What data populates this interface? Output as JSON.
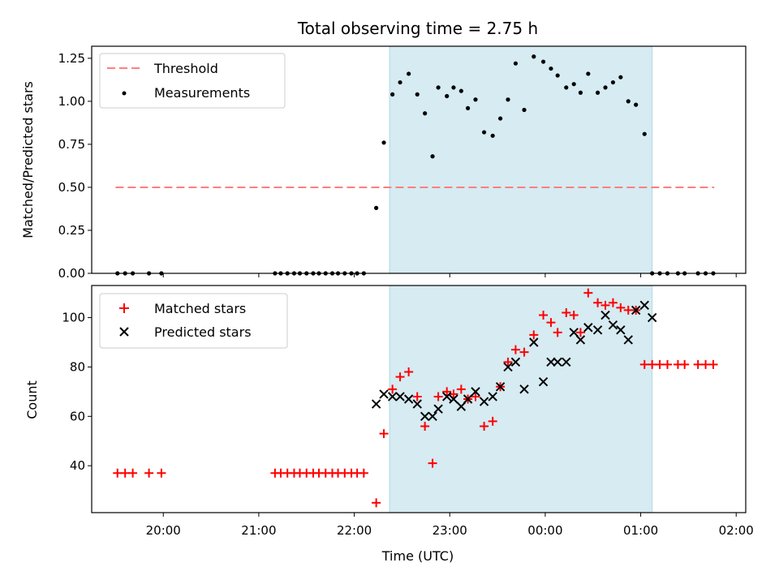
{
  "chart_data": [
    {
      "type": "scatter",
      "title": "Total observing time = 2.75 h",
      "xlabel": "",
      "ylabel": "Matched/Predicted stars",
      "x_unit": "hours (UTC, continuing past midnight)",
      "xlim": [
        19.25,
        26.1
      ],
      "ylim": [
        0,
        1.32
      ],
      "yticks": [
        0.0,
        0.25,
        0.5,
        0.75,
        1.0,
        1.25
      ],
      "ytick_labels": [
        "0.00",
        "0.25",
        "0.50",
        "0.75",
        "1.00",
        "1.25"
      ],
      "xticks": [
        20,
        21,
        22,
        23,
        24,
        25,
        26
      ],
      "xtick_labels": [],
      "shaded_region": {
        "x": [
          22.37,
          25.12
        ],
        "color": "#add8e6"
      },
      "legend": {
        "position": "upper left"
      },
      "series": [
        {
          "name": "Threshold",
          "style": "dashed-line",
          "color": "#ff7f7f",
          "x": [
            19.5,
            25.77
          ],
          "y": [
            0.5,
            0.5
          ]
        },
        {
          "name": "Measurements",
          "style": "dot",
          "color": "#000000",
          "x": [
            19.52,
            19.6,
            19.68,
            19.85,
            19.98,
            21.17,
            21.23,
            21.3,
            21.37,
            21.43,
            21.5,
            21.57,
            21.63,
            21.7,
            21.77,
            21.83,
            21.9,
            21.97,
            22.03,
            22.1,
            22.23,
            22.31,
            22.4,
            22.48,
            22.57,
            22.66,
            22.74,
            22.82,
            22.88,
            22.97,
            23.04,
            23.12,
            23.19,
            23.27,
            23.36,
            23.45,
            23.53,
            23.61,
            23.69,
            23.78,
            23.88,
            23.98,
            24.06,
            24.13,
            24.22,
            24.3,
            24.37,
            24.45,
            24.55,
            24.63,
            24.71,
            24.79,
            24.87,
            24.95,
            25.04,
            25.12,
            25.2,
            25.28,
            25.39,
            25.46,
            25.6,
            25.68,
            25.76
          ],
          "y": [
            0,
            0,
            0,
            0,
            0,
            0,
            0,
            0,
            0,
            0,
            0,
            0,
            0,
            0,
            0,
            0,
            0,
            0,
            0,
            0,
            0.38,
            0.76,
            1.04,
            1.11,
            1.16,
            1.04,
            0.93,
            0.68,
            1.08,
            1.03,
            1.08,
            1.06,
            0.96,
            1.01,
            0.82,
            0.8,
            0.9,
            1.01,
            1.22,
            0.95,
            1.26,
            1.23,
            1.19,
            1.15,
            1.08,
            1.1,
            1.05,
            1.16,
            1.05,
            1.08,
            1.11,
            1.14,
            1.0,
            0.98,
            0.81,
            0,
            0,
            0,
            0,
            0,
            0,
            0,
            0
          ]
        }
      ]
    },
    {
      "type": "scatter",
      "title": "",
      "xlabel": "Time (UTC)",
      "ylabel": "Count",
      "x_unit": "hours (UTC, continuing past midnight)",
      "xlim": [
        19.25,
        26.1
      ],
      "ylim": [
        21,
        113
      ],
      "yticks": [
        40,
        60,
        80,
        100
      ],
      "ytick_labels": [
        "40",
        "60",
        "80",
        "100"
      ],
      "xticks": [
        20,
        21,
        22,
        23,
        24,
        25,
        26
      ],
      "xtick_labels": [
        "20:00",
        "21:00",
        "22:00",
        "23:00",
        "00:00",
        "01:00",
        "02:00"
      ],
      "shaded_region": {
        "x": [
          22.37,
          25.12
        ],
        "color": "#add8e6"
      },
      "legend": {
        "position": "upper left"
      },
      "series": [
        {
          "name": "Matched stars",
          "style": "plus",
          "color": "#ff0000",
          "x": [
            19.52,
            19.6,
            19.68,
            19.85,
            19.98,
            21.17,
            21.23,
            21.3,
            21.37,
            21.43,
            21.5,
            21.57,
            21.63,
            21.7,
            21.77,
            21.83,
            21.9,
            21.97,
            22.03,
            22.1,
            22.23,
            22.31,
            22.4,
            22.48,
            22.57,
            22.66,
            22.74,
            22.82,
            22.88,
            22.97,
            23.04,
            23.12,
            23.19,
            23.27,
            23.36,
            23.45,
            23.53,
            23.61,
            23.69,
            23.78,
            23.88,
            23.98,
            24.06,
            24.13,
            24.22,
            24.3,
            24.37,
            24.45,
            24.55,
            24.63,
            24.71,
            24.79,
            24.87,
            24.95,
            25.04,
            25.12,
            25.2,
            25.28,
            25.39,
            25.46,
            25.6,
            25.68,
            25.76
          ],
          "y": [
            37,
            37,
            37,
            37,
            37,
            37,
            37,
            37,
            37,
            37,
            37,
            37,
            37,
            37,
            37,
            37,
            37,
            37,
            37,
            37,
            25,
            53,
            71,
            76,
            78,
            68,
            56,
            41,
            68,
            70,
            69,
            71,
            67,
            68,
            56,
            58,
            72,
            82,
            87,
            86,
            93,
            101,
            98,
            94,
            102,
            101,
            94,
            110,
            106,
            105,
            106,
            104,
            103,
            103,
            81,
            81,
            81,
            81,
            81,
            81,
            81,
            81,
            81
          ]
        },
        {
          "name": "Predicted stars",
          "style": "x",
          "color": "#000000",
          "x": [
            22.23,
            22.31,
            22.4,
            22.48,
            22.57,
            22.66,
            22.74,
            22.82,
            22.88,
            22.97,
            23.04,
            23.12,
            23.19,
            23.27,
            23.36,
            23.45,
            23.53,
            23.61,
            23.69,
            23.78,
            23.88,
            23.98,
            24.06,
            24.13,
            24.22,
            24.3,
            24.37,
            24.45,
            24.55,
            24.63,
            24.71,
            24.79,
            24.87,
            24.95,
            25.04,
            25.12
          ],
          "y": [
            65,
            69,
            68,
            68,
            67,
            65,
            60,
            60,
            63,
            68,
            67,
            64,
            67,
            70,
            66,
            68,
            72,
            80,
            82,
            71,
            90,
            74,
            82,
            82,
            82,
            94,
            91,
            96,
            95,
            101,
            97,
            95,
            91,
            103,
            105,
            100
          ]
        }
      ]
    }
  ]
}
